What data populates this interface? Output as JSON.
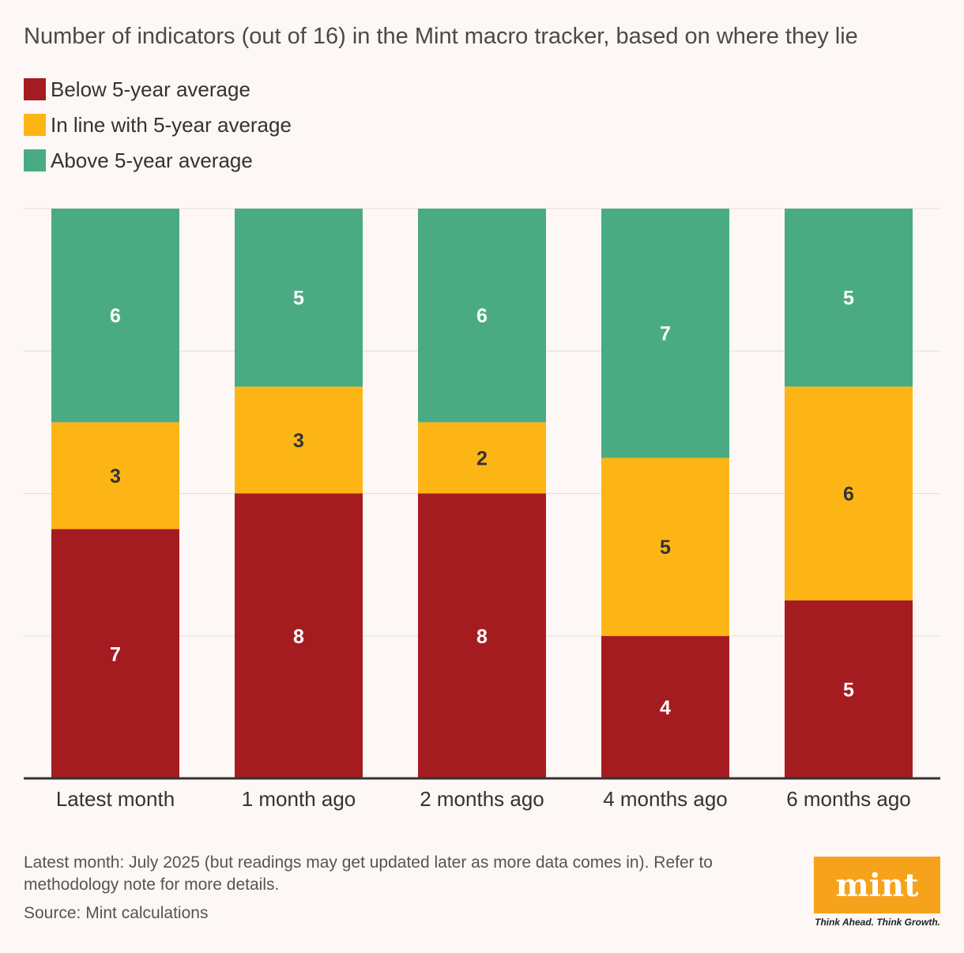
{
  "chart_data": {
    "type": "bar",
    "stacked": true,
    "title": "Number of indicators (out of 16) in the Mint macro tracker, based on where they lie",
    "categories": [
      "Latest month",
      "1 month ago",
      "2 months ago",
      "4 months ago",
      "6 months ago"
    ],
    "series": [
      {
        "name": "Below 5-year average",
        "color": "#a51c20",
        "values": [
          7,
          8,
          8,
          4,
          5
        ]
      },
      {
        "name": "In line with 5-year average",
        "color": "#fdb515",
        "values": [
          3,
          3,
          2,
          5,
          6
        ]
      },
      {
        "name": "Above 5-year average",
        "color": "#4aab83",
        "values": [
          6,
          5,
          6,
          7,
          5
        ]
      }
    ],
    "ylim": [
      0,
      16
    ],
    "grid": true,
    "legend_position": "top-left"
  },
  "footnote": "Latest month: July 2025 (but readings may get updated later as more data comes in). Refer to methodology note for more details.",
  "source": "Source: Mint calculations",
  "logo": {
    "text": "mint",
    "color": "#f7a21b",
    "tagline": "Think Ahead. Think Growth."
  }
}
